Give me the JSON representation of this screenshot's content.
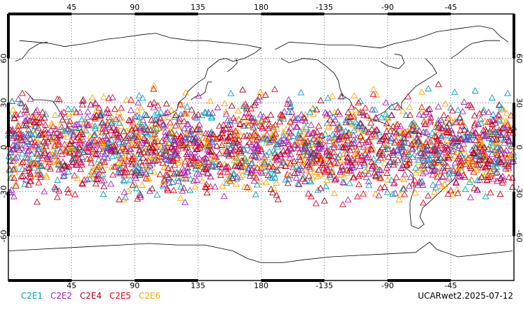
{
  "chart_data": {
    "type": "scatter",
    "projection": "equirectangular",
    "central_longitude": 180,
    "marker": "triangle",
    "lon_ticks": [
      "45",
      "90",
      "135",
      "180",
      "-135",
      "-90",
      "-45"
    ],
    "lat_ticks_left": [
      "60",
      "30",
      "0",
      "-30",
      "-60"
    ],
    "lat_ticks_right": [
      "60",
      "30",
      "0",
      "-30",
      "-60"
    ],
    "lat_range": [
      -90,
      90
    ],
    "observation_latitude_band": [
      -45,
      45
    ],
    "density_peak_latitude": 0,
    "grid": true,
    "legend_placement": "bottom-left",
    "series": [
      {
        "name": "C2E1",
        "color": "#00a0c0"
      },
      {
        "name": "C2E2",
        "color": "#a020c0"
      },
      {
        "name": "C2E4",
        "color": "#b00020"
      },
      {
        "name": "C2E5",
        "color": "#e8001c"
      },
      {
        "name": "C2E6",
        "color": "#ffa500"
      }
    ],
    "stamp": "UCARwet2.2025-07-12"
  }
}
